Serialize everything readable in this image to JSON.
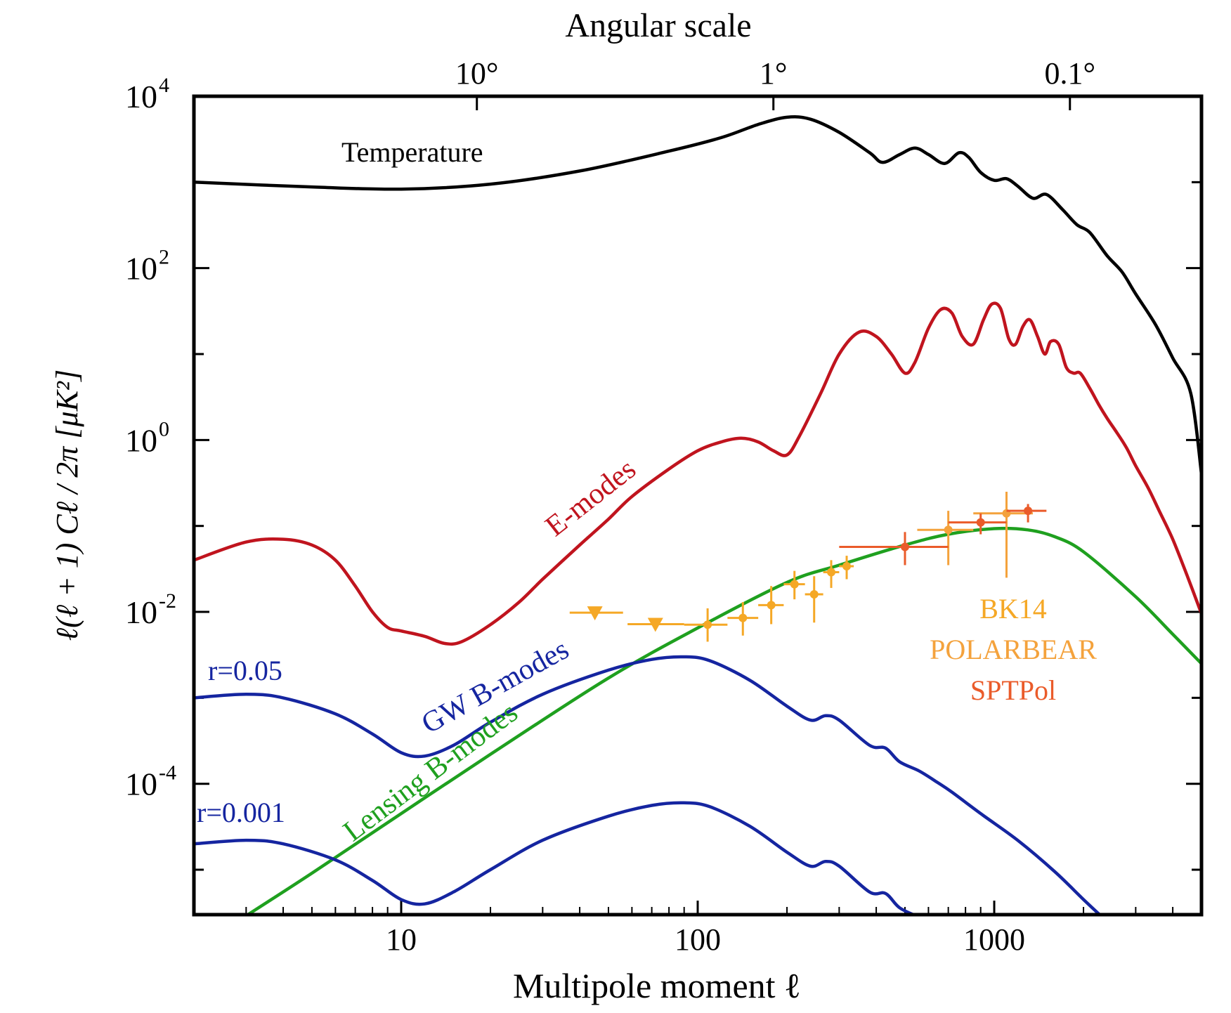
{
  "chart_data": {
    "type": "line",
    "title": "",
    "xlabel": "Multipole moment ℓ",
    "x2label": "Angular scale",
    "ylabel": "ℓ(ℓ + 1) Cℓ / 2π [μK²]",
    "xscale": "log",
    "yscale": "log",
    "xlim": [
      2,
      5000
    ],
    "ylim": [
      3e-06,
      10000
    ],
    "grid": false,
    "x_ticks": [
      {
        "value": 10,
        "label": "10"
      },
      {
        "value": 100,
        "label": "100"
      },
      {
        "value": 1000,
        "label": "1000"
      }
    ],
    "x2_ticks": [
      {
        "value": 18,
        "label": "10°"
      },
      {
        "value": 180,
        "label": "1°"
      },
      {
        "value": 1800,
        "label": "0.1°"
      }
    ],
    "y_ticks": [
      {
        "value": 10000,
        "base": "10",
        "exp": "4"
      },
      {
        "value": 100,
        "base": "10",
        "exp": "2"
      },
      {
        "value": 1,
        "base": "10",
        "exp": "0"
      },
      {
        "value": 0.01,
        "base": "10",
        "exp": "-2"
      },
      {
        "value": 0.0001,
        "base": "10",
        "exp": "-4"
      }
    ],
    "series": [
      {
        "name": "Temperature",
        "color": "#000000",
        "points": [
          [
            2,
            1000
          ],
          [
            5,
            880
          ],
          [
            10,
            830
          ],
          [
            20,
            950
          ],
          [
            40,
            1350
          ],
          [
            80,
            2300
          ],
          [
            120,
            3300
          ],
          [
            160,
            4700
          ],
          [
            200,
            5700
          ],
          [
            240,
            5400
          ],
          [
            300,
            3800
          ],
          [
            380,
            2200
          ],
          [
            420,
            1700
          ],
          [
            480,
            2100
          ],
          [
            540,
            2500
          ],
          [
            600,
            2100
          ],
          [
            680,
            1650
          ],
          [
            760,
            2200
          ],
          [
            820,
            1950
          ],
          [
            900,
            1300
          ],
          [
            1000,
            1050
          ],
          [
            1100,
            1100
          ],
          [
            1200,
            900
          ],
          [
            1350,
            650
          ],
          [
            1500,
            720
          ],
          [
            1700,
            480
          ],
          [
            1900,
            320
          ],
          [
            2100,
            260
          ],
          [
            2400,
            140
          ],
          [
            2700,
            90
          ],
          [
            3000,
            50
          ],
          [
            3500,
            22
          ],
          [
            4000,
            9
          ],
          [
            4600,
            3.5
          ],
          [
            5000,
            0.4
          ]
        ]
      },
      {
        "name": "E-modes",
        "color": "#c0141e",
        "points": [
          [
            2,
            0.04
          ],
          [
            3,
            0.065
          ],
          [
            4,
            0.07
          ],
          [
            5,
            0.06
          ],
          [
            6,
            0.04
          ],
          [
            7,
            0.02
          ],
          [
            8,
            0.01
          ],
          [
            9,
            0.0066
          ],
          [
            10,
            0.006
          ],
          [
            12,
            0.0052
          ],
          [
            14,
            0.0043
          ],
          [
            16,
            0.0045
          ],
          [
            20,
            0.0071
          ],
          [
            25,
            0.013
          ],
          [
            30,
            0.024
          ],
          [
            40,
            0.06
          ],
          [
            50,
            0.12
          ],
          [
            60,
            0.22
          ],
          [
            80,
            0.46
          ],
          [
            100,
            0.75
          ],
          [
            120,
            0.95
          ],
          [
            140,
            1.05
          ],
          [
            160,
            0.95
          ],
          [
            180,
            0.75
          ],
          [
            200,
            0.67
          ],
          [
            220,
            1.1
          ],
          [
            260,
            3.5
          ],
          [
            300,
            10
          ],
          [
            350,
            18
          ],
          [
            400,
            16
          ],
          [
            450,
            10
          ],
          [
            500,
            6
          ],
          [
            540,
            8
          ],
          [
            600,
            20
          ],
          [
            660,
            33
          ],
          [
            720,
            30
          ],
          [
            780,
            16
          ],
          [
            850,
            13
          ],
          [
            920,
            25
          ],
          [
            980,
            38
          ],
          [
            1050,
            34
          ],
          [
            1120,
            15
          ],
          [
            1180,
            13
          ],
          [
            1250,
            21
          ],
          [
            1320,
            25
          ],
          [
            1400,
            16
          ],
          [
            1480,
            10
          ],
          [
            1550,
            14
          ],
          [
            1650,
            13
          ],
          [
            1750,
            7
          ],
          [
            1850,
            6
          ],
          [
            1950,
            6
          ],
          [
            2100,
            4
          ],
          [
            2250,
            2.6
          ],
          [
            2400,
            1.8
          ],
          [
            2600,
            1.2
          ],
          [
            2800,
            0.8
          ],
          [
            3000,
            0.5
          ],
          [
            3300,
            0.28
          ],
          [
            3600,
            0.15
          ],
          [
            4000,
            0.07
          ],
          [
            4500,
            0.025
          ],
          [
            5000,
            0.0095
          ]
        ]
      },
      {
        "name": "Lensing B-modes",
        "color": "#1fa01f",
        "points": [
          [
            2.8,
            2.5e-06
          ],
          [
            5,
            9.1e-06
          ],
          [
            10,
            4.5e-05
          ],
          [
            20,
            0.00022
          ],
          [
            50,
            0.0017
          ],
          [
            100,
            0.0065
          ],
          [
            200,
            0.022
          ],
          [
            300,
            0.035
          ],
          [
            500,
            0.06
          ],
          [
            700,
            0.08
          ],
          [
            1000,
            0.093
          ],
          [
            1300,
            0.09
          ],
          [
            1600,
            0.075
          ],
          [
            2000,
            0.05
          ],
          [
            3000,
            0.015
          ],
          [
            4000,
            0.0055
          ],
          [
            5000,
            0.0025
          ]
        ]
      },
      {
        "name": "r=0.05",
        "color": "#1525a0",
        "points": [
          [
            2,
            0.001
          ],
          [
            3,
            0.0011
          ],
          [
            4,
            0.001
          ],
          [
            6,
            0.00065
          ],
          [
            8,
            0.00038
          ],
          [
            10,
            0.00023
          ],
          [
            12,
            0.00021
          ],
          [
            15,
            0.00028
          ],
          [
            20,
            0.00052
          ],
          [
            30,
            0.0011
          ],
          [
            50,
            0.0021
          ],
          [
            70,
            0.0028
          ],
          [
            90,
            0.003
          ],
          [
            110,
            0.0027
          ],
          [
            150,
            0.0016
          ],
          [
            200,
            0.0008
          ],
          [
            240,
            0.00055
          ],
          [
            270,
            0.00062
          ],
          [
            300,
            0.00055
          ],
          [
            380,
            0.00028
          ],
          [
            430,
            0.00026
          ],
          [
            480,
            0.00018
          ],
          [
            560,
            0.00014
          ],
          [
            640,
            0.000105
          ],
          [
            720,
            8e-05
          ],
          [
            900,
            4.5e-05
          ],
          [
            1200,
            2.2e-05
          ],
          [
            1600,
            9.5e-06
          ],
          [
            2000,
            4.5e-06
          ],
          [
            2400,
            2.5e-06
          ]
        ]
      },
      {
        "name": "r=0.001",
        "color": "#1525a0",
        "points": [
          [
            2,
            2e-05
          ],
          [
            3,
            2.2e-05
          ],
          [
            4,
            2e-05
          ],
          [
            6,
            1.3e-05
          ],
          [
            8,
            7.5e-06
          ],
          [
            10,
            4.5e-06
          ],
          [
            12,
            4e-06
          ],
          [
            15,
            5.5e-06
          ],
          [
            20,
            1e-05
          ],
          [
            30,
            2.2e-05
          ],
          [
            50,
            4.2e-05
          ],
          [
            70,
            5.6e-05
          ],
          [
            90,
            6e-05
          ],
          [
            110,
            5.4e-05
          ],
          [
            150,
            3.2e-05
          ],
          [
            200,
            1.6e-05
          ],
          [
            240,
            1.1e-05
          ],
          [
            270,
            1.25e-05
          ],
          [
            300,
            1.1e-05
          ],
          [
            380,
            5.5e-06
          ],
          [
            430,
            5.3e-06
          ],
          [
            480,
            3.6e-06
          ],
          [
            560,
            2.8e-06
          ],
          [
            640,
            2.3e-06
          ]
        ]
      }
    ],
    "measurements": [
      {
        "name": "BK14",
        "color": "#f5a826",
        "points": [
          {
            "x": 45,
            "y": 0.0098,
            "xerr": [
              37,
              56
            ],
            "upper_limit": true
          },
          {
            "x": 72,
            "y": 0.0072,
            "xerr": [
              58,
              90
            ],
            "upper_limit": true
          },
          {
            "x": 108,
            "y": 0.0071,
            "xerr": [
              90,
              126
            ],
            "yerr": [
              0.0045,
              0.011
            ]
          },
          {
            "x": 142,
            "y": 0.0085,
            "xerr": [
              126,
              160
            ],
            "yerr": [
              0.0053,
              0.013
            ]
          },
          {
            "x": 177,
            "y": 0.012,
            "xerr": [
              160,
              195
            ],
            "yerr": [
              0.0072,
              0.02
            ]
          },
          {
            "x": 212,
            "y": 0.021,
            "xerr": [
              195,
              230
            ],
            "yerr": [
              0.014,
              0.03
            ]
          },
          {
            "x": 247,
            "y": 0.016,
            "xerr": [
              230,
              265
            ],
            "yerr": [
              0.0075,
              0.026
            ]
          },
          {
            "x": 282,
            "y": 0.029,
            "xerr": [
              265,
              300
            ],
            "yerr": [
              0.019,
              0.04
            ]
          },
          {
            "x": 318,
            "y": 0.034,
            "xerr": [
              300,
              336
            ],
            "yerr": [
              0.024,
              0.045
            ]
          }
        ]
      },
      {
        "name": "POLARBEAR",
        "color": "#f4a23c",
        "points": [
          {
            "x": 700,
            "y": 0.09,
            "xerr": [
              550,
              850
            ],
            "yerr": [
              0.035,
              0.15
            ]
          },
          {
            "x": 1100,
            "y": 0.14,
            "xerr": [
              850,
              1350
            ],
            "yerr": [
              0.025,
              0.25
            ]
          }
        ]
      },
      {
        "name": "SPTPol",
        "color": "#ea5b2a",
        "points": [
          {
            "x": 500,
            "y": 0.057,
            "xerr": [
              300,
              700
            ],
            "yerr": [
              0.035,
              0.085
            ]
          },
          {
            "x": 900,
            "y": 0.11,
            "xerr": [
              700,
              1100
            ],
            "yerr": [
              0.08,
              0.14
            ]
          },
          {
            "x": 1300,
            "y": 0.15,
            "xerr": [
              1100,
              1500
            ],
            "yerr": [
              0.11,
              0.18
            ]
          }
        ]
      }
    ],
    "annotations": [
      {
        "text": "Temperature",
        "color": "#000000"
      },
      {
        "text": "E-modes",
        "color": "#c0141e"
      },
      {
        "text": "r=0.05",
        "color": "#1525a0"
      },
      {
        "text": "GW B-modes",
        "color": "#1525a0"
      },
      {
        "text": "Lensing B-modes",
        "color": "#1fa01f"
      },
      {
        "text": "r=0.001",
        "color": "#1525a0"
      },
      {
        "text": "BK14",
        "color": "#f5a826"
      },
      {
        "text": "POLARBEAR",
        "color": "#f4a23c"
      },
      {
        "text": "SPTPol",
        "color": "#ea5b2a"
      }
    ]
  }
}
